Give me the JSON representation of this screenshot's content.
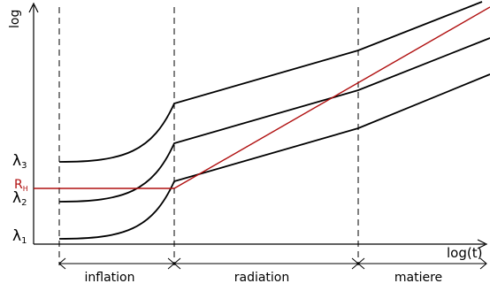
{
  "axes": {
    "y_label": "log",
    "x_label": "log(t)"
  },
  "curve_labels": {
    "lambda3": {
      "symbol": "λ",
      "sub": "3"
    },
    "lambda2": {
      "symbol": "λ",
      "sub": "2"
    },
    "lambda1": {
      "symbol": "λ",
      "sub": "1"
    },
    "hubble": {
      "symbol": "R",
      "sub": "H"
    }
  },
  "eras": [
    {
      "key": "inflation",
      "label": "inflation"
    },
    {
      "key": "radiation",
      "label": "radiation"
    },
    {
      "key": "matter",
      "label": "matiere"
    }
  ],
  "colors": {
    "lines": "#000000",
    "hubble": "#b01010"
  }
}
